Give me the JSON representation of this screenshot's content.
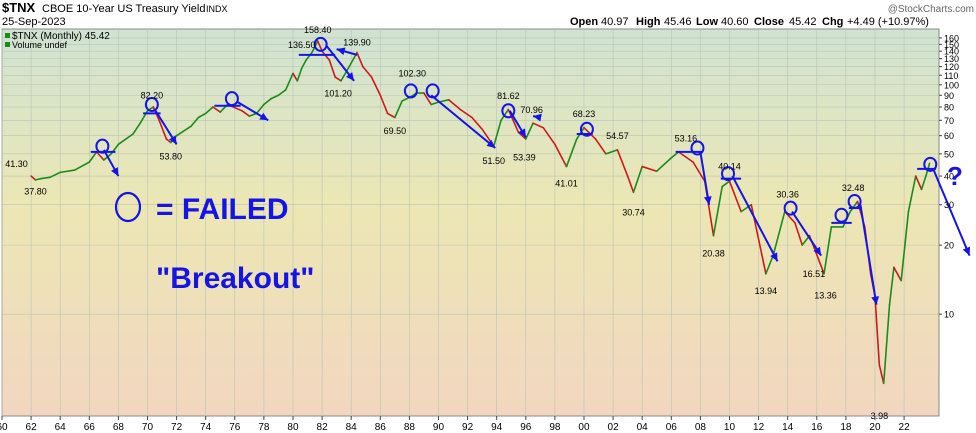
{
  "header": {
    "symbol": "$TNX",
    "name": "CBOE 10-Year US Treasury Yield",
    "exchange": "INDX",
    "date": "25-Sep-2023",
    "copyright": "@StockCharts.com",
    "quote": {
      "open_label": "Open",
      "open": "40.97",
      "high_label": "High",
      "high": "45.46",
      "low_label": "Low",
      "low": "40.60",
      "close_label": "Close",
      "close": "45.42",
      "chg_label": "Chg",
      "chg": "+4.49 (+10.97%)"
    }
  },
  "legend": {
    "price": "$TNX (Monthly) 45.42",
    "volume": "Volume undef"
  },
  "overlay_text": {
    "failed_line1": "= FAILED",
    "failed_line2": "\"Breakout\"",
    "question_mark": "?"
  },
  "colors": {
    "arrows": "#1414e6",
    "up_candle": "#1a8c1a",
    "down_candle": "#cc1a1a",
    "background_top": "#cfe3d2",
    "background_mid": "#ece7b4",
    "background_bottom": "#f2d6c0"
  },
  "chart_data": {
    "type": "line",
    "y_scale": "log",
    "ylim": [
      3.6,
      175
    ],
    "xlim": [
      1960.0,
      2024.4
    ],
    "grid": true,
    "x_ticks": [
      {
        "v": 1960,
        "label": "60"
      },
      {
        "v": 1962,
        "label": "62"
      },
      {
        "v": 1964,
        "label": "64"
      },
      {
        "v": 1966,
        "label": "66"
      },
      {
        "v": 1968,
        "label": "68"
      },
      {
        "v": 1970,
        "label": "70"
      },
      {
        "v": 1972,
        "label": "72"
      },
      {
        "v": 1974,
        "label": "74"
      },
      {
        "v": 1976,
        "label": "76"
      },
      {
        "v": 1978,
        "label": "78"
      },
      {
        "v": 1980,
        "label": "80"
      },
      {
        "v": 1982,
        "label": "82"
      },
      {
        "v": 1984,
        "label": "84"
      },
      {
        "v": 1986,
        "label": "86"
      },
      {
        "v": 1988,
        "label": "88"
      },
      {
        "v": 1990,
        "label": "90"
      },
      {
        "v": 1992,
        "label": "92"
      },
      {
        "v": 1994,
        "label": "94"
      },
      {
        "v": 1996,
        "label": "96"
      },
      {
        "v": 1998,
        "label": "98"
      },
      {
        "v": 2000,
        "label": "00"
      },
      {
        "v": 2002,
        "label": "02"
      },
      {
        "v": 2004,
        "label": "04"
      },
      {
        "v": 2006,
        "label": "06"
      },
      {
        "v": 2008,
        "label": "08"
      },
      {
        "v": 2010,
        "label": "10"
      },
      {
        "v": 2012,
        "label": "12"
      },
      {
        "v": 2014,
        "label": "14"
      },
      {
        "v": 2016,
        "label": "16"
      },
      {
        "v": 2018,
        "label": "18"
      },
      {
        "v": 2020,
        "label": "20"
      },
      {
        "v": 2022,
        "label": "22"
      }
    ],
    "y_ticks": [
      {
        "v": 160,
        "label": "160"
      },
      {
        "v": 150,
        "label": "150"
      },
      {
        "v": 140,
        "label": "140"
      },
      {
        "v": 130,
        "label": "130"
      },
      {
        "v": 120,
        "label": "120"
      },
      {
        "v": 110,
        "label": "110"
      },
      {
        "v": 100,
        "label": "100"
      },
      {
        "v": 90,
        "label": "90"
      },
      {
        "v": 80,
        "label": "80"
      },
      {
        "v": 70,
        "label": "70"
      },
      {
        "v": 60,
        "label": "60"
      },
      {
        "v": 50,
        "label": "50"
      },
      {
        "v": 40,
        "label": "40"
      },
      {
        "v": 30,
        "label": "30"
      },
      {
        "v": 20,
        "label": "20"
      },
      {
        "v": 10,
        "label": "10"
      }
    ],
    "series": [
      {
        "points": [
          [
            1962.0,
            40
          ],
          [
            1962.3,
            38.5
          ],
          [
            1962.7,
            39
          ],
          [
            1963.3,
            39.5
          ],
          [
            1964.0,
            41.5
          ],
          [
            1965.0,
            42.5
          ],
          [
            1966.0,
            46
          ],
          [
            1966.5,
            51
          ],
          [
            1967.0,
            47
          ],
          [
            1967.5,
            50
          ],
          [
            1968.0,
            55
          ],
          [
            1969.0,
            61
          ],
          [
            1969.5,
            68
          ],
          [
            1970.0,
            77
          ],
          [
            1970.4,
            80
          ],
          [
            1970.8,
            70
          ],
          [
            1971.3,
            58
          ],
          [
            1971.6,
            56
          ],
          [
            1972.0,
            60
          ],
          [
            1973.0,
            66
          ],
          [
            1973.5,
            72
          ],
          [
            1974.0,
            75
          ],
          [
            1974.5,
            80
          ],
          [
            1975.0,
            76
          ],
          [
            1975.5,
            82
          ],
          [
            1976.5,
            77
          ],
          [
            1977.0,
            73
          ],
          [
            1977.5,
            75
          ],
          [
            1978.0,
            82
          ],
          [
            1978.5,
            87
          ],
          [
            1979.0,
            90
          ],
          [
            1979.5,
            95
          ],
          [
            1980.0,
            112
          ],
          [
            1980.3,
            104
          ],
          [
            1980.6,
            118
          ],
          [
            1980.9,
            128
          ],
          [
            1981.3,
            138
          ],
          [
            1981.7,
            155
          ],
          [
            1982.0,
            140
          ],
          [
            1982.5,
            128
          ],
          [
            1982.9,
            108
          ],
          [
            1983.3,
            104
          ],
          [
            1983.8,
            118
          ],
          [
            1984.4,
            138
          ],
          [
            1984.8,
            120
          ],
          [
            1985.4,
            108
          ],
          [
            1986.0,
            90
          ],
          [
            1986.5,
            75
          ],
          [
            1987.0,
            72
          ],
          [
            1987.5,
            85
          ],
          [
            1988.0,
            88
          ],
          [
            1988.5,
            92
          ],
          [
            1989.0,
            92
          ],
          [
            1989.5,
            82
          ],
          [
            1990.0,
            84
          ],
          [
            1990.7,
            86
          ],
          [
            1991.5,
            78
          ],
          [
            1992.3,
            72
          ],
          [
            1993.0,
            64
          ],
          [
            1993.8,
            54
          ],
          [
            1994.3,
            70
          ],
          [
            1994.8,
            78
          ],
          [
            1995.5,
            62
          ],
          [
            1996.0,
            58
          ],
          [
            1996.5,
            68
          ],
          [
            1997.2,
            65
          ],
          [
            1998.0,
            55
          ],
          [
            1998.8,
            44
          ],
          [
            1999.5,
            58
          ],
          [
            2000.0,
            65
          ],
          [
            2000.8,
            58
          ],
          [
            2001.5,
            50
          ],
          [
            2002.3,
            52
          ],
          [
            2003.0,
            40
          ],
          [
            2003.4,
            34
          ],
          [
            2004.0,
            44
          ],
          [
            2005.0,
            42
          ],
          [
            2006.0,
            48
          ],
          [
            2006.5,
            51
          ],
          [
            2007.5,
            46
          ],
          [
            2008.3,
            38
          ],
          [
            2008.9,
            22
          ],
          [
            2009.5,
            36
          ],
          [
            2010.0,
            38
          ],
          [
            2010.8,
            28
          ],
          [
            2011.5,
            30
          ],
          [
            2012.5,
            15
          ],
          [
            2013.0,
            18
          ],
          [
            2013.8,
            28
          ],
          [
            2014.5,
            25
          ],
          [
            2015.0,
            20
          ],
          [
            2015.5,
            22
          ],
          [
            2016.5,
            15
          ],
          [
            2017.0,
            24
          ],
          [
            2017.8,
            24
          ],
          [
            2018.3,
            28
          ],
          [
            2018.8,
            31
          ],
          [
            2019.3,
            24
          ],
          [
            2019.7,
            15
          ],
          [
            2020.0,
            12
          ],
          [
            2020.3,
            6
          ],
          [
            2020.6,
            5
          ],
          [
            2021.0,
            11
          ],
          [
            2021.3,
            16
          ],
          [
            2021.8,
            14
          ],
          [
            2022.3,
            28
          ],
          [
            2022.8,
            40
          ],
          [
            2023.2,
            35
          ],
          [
            2023.5,
            40
          ],
          [
            2023.75,
            45.42
          ]
        ]
      }
    ],
    "value_labels": [
      {
        "x": 1961.0,
        "y": 41.3,
        "text": "41.30"
      },
      {
        "x": 1962.3,
        "y": 37.8,
        "text": "37.80"
      },
      {
        "x": 1970.3,
        "y": 82.2,
        "text": "82.20"
      },
      {
        "x": 1971.6,
        "y": 53.8,
        "text": "53.80"
      },
      {
        "x": 1980.6,
        "y": 136.5,
        "text": "136.50"
      },
      {
        "x": 1981.7,
        "y": 158.4,
        "text": "158.40"
      },
      {
        "x": 1983.1,
        "y": 101.2,
        "text": "101.20"
      },
      {
        "x": 1984.4,
        "y": 139.9,
        "text": "139.90"
      },
      {
        "x": 1987.0,
        "y": 69.5,
        "text": "69.50"
      },
      {
        "x": 1988.2,
        "y": 102.3,
        "text": "102.30"
      },
      {
        "x": 1993.8,
        "y": 51.5,
        "text": "51.50"
      },
      {
        "x": 1994.8,
        "y": 81.62,
        "text": "81.62"
      },
      {
        "x": 1996.4,
        "y": 70.96,
        "text": "70.96"
      },
      {
        "x": 1995.9,
        "y": 53.39,
        "text": "53.39"
      },
      {
        "x": 1998.8,
        "y": 41.01,
        "text": "41.01"
      },
      {
        "x": 2000.0,
        "y": 68.23,
        "text": "68.23"
      },
      {
        "x": 2002.3,
        "y": 54.57,
        "text": "54.57"
      },
      {
        "x": 2003.4,
        "y": 30.74,
        "text": "30.74"
      },
      {
        "x": 2007.0,
        "y": 53.16,
        "text": "53.16"
      },
      {
        "x": 2010.0,
        "y": 40.14,
        "text": "40.14"
      },
      {
        "x": 2008.9,
        "y": 20.38,
        "text": "20.38"
      },
      {
        "x": 2012.5,
        "y": 13.94,
        "text": "13.94"
      },
      {
        "x": 2014.0,
        "y": 30.36,
        "text": "30.36"
      },
      {
        "x": 2015.8,
        "y": 16.51,
        "text": "16.51"
      },
      {
        "x": 2016.6,
        "y": 13.36,
        "text": "13.36"
      },
      {
        "x": 2018.5,
        "y": 32.48,
        "text": "32.48"
      },
      {
        "x": 2020.3,
        "y": 3.98,
        "text": "3.98"
      }
    ],
    "failed_breakout_circles": [
      {
        "x": 1966.9,
        "y": 54
      },
      {
        "x": 1970.3,
        "y": 82
      },
      {
        "x": 1975.8,
        "y": 87
      },
      {
        "x": 1981.9,
        "y": 150
      },
      {
        "x": 1988.1,
        "y": 94
      },
      {
        "x": 1989.6,
        "y": 94
      },
      {
        "x": 1994.8,
        "y": 77
      },
      {
        "x": 2000.2,
        "y": 64
      },
      {
        "x": 2007.8,
        "y": 53
      },
      {
        "x": 2009.9,
        "y": 41
      },
      {
        "x": 2014.2,
        "y": 29
      },
      {
        "x": 2017.7,
        "y": 27
      },
      {
        "x": 2018.6,
        "y": 31
      },
      {
        "x": 2023.8,
        "y": 45
      }
    ],
    "resistance_lines": [
      {
        "x1": 1966.1,
        "x2": 1967.8,
        "y": 51
      },
      {
        "x1": 1969.7,
        "x2": 1970.9,
        "y": 75
      },
      {
        "x1": 1974.6,
        "x2": 1976.4,
        "y": 81
      },
      {
        "x1": 1980.4,
        "x2": 1982.9,
        "y": 135
      },
      {
        "x1": 1999.5,
        "x2": 2000.6,
        "y": 61
      },
      {
        "x1": 2006.3,
        "x2": 2008.1,
        "y": 51
      },
      {
        "x1": 2009.4,
        "x2": 2010.8,
        "y": 39
      },
      {
        "x1": 2017.0,
        "x2": 2018.4,
        "y": 25
      },
      {
        "x1": 2018.2,
        "x2": 2019.1,
        "y": 29
      },
      {
        "x1": 2022.9,
        "x2": 2024.2,
        "y": 43
      }
    ],
    "arrows": [
      {
        "x1": 1967.0,
        "y1": 52,
        "x2": 1968.0,
        "y2": 40
      },
      {
        "x1": 1970.5,
        "y1": 78,
        "x2": 1972.0,
        "y2": 55
      },
      {
        "x1": 1976.2,
        "y1": 84,
        "x2": 1978.3,
        "y2": 70
      },
      {
        "x1": 1982.3,
        "y1": 148,
        "x2": 1984.2,
        "y2": 104
      },
      {
        "x1": 1984.4,
        "y1": 135,
        "x2": 1983.0,
        "y2": 143
      },
      {
        "x1": 1989.5,
        "y1": 90,
        "x2": 1993.9,
        "y2": 53
      },
      {
        "x1": 1994.9,
        "y1": 77,
        "x2": 1996.0,
        "y2": 59
      },
      {
        "x1": 1997.0,
        "y1": 72,
        "x2": 1996.5,
        "y2": 73
      },
      {
        "x1": 2008.0,
        "y1": 51,
        "x2": 2008.6,
        "y2": 30
      },
      {
        "x1": 2010.2,
        "y1": 40,
        "x2": 2013.3,
        "y2": 17
      },
      {
        "x1": 2014.3,
        "y1": 28,
        "x2": 2016.3,
        "y2": 18
      },
      {
        "x1": 2019.0,
        "y1": 30,
        "x2": 2020.1,
        "y2": 11
      },
      {
        "x1": 2024.0,
        "y1": 43,
        "x2": 2026.5,
        "y2": 18
      }
    ]
  }
}
